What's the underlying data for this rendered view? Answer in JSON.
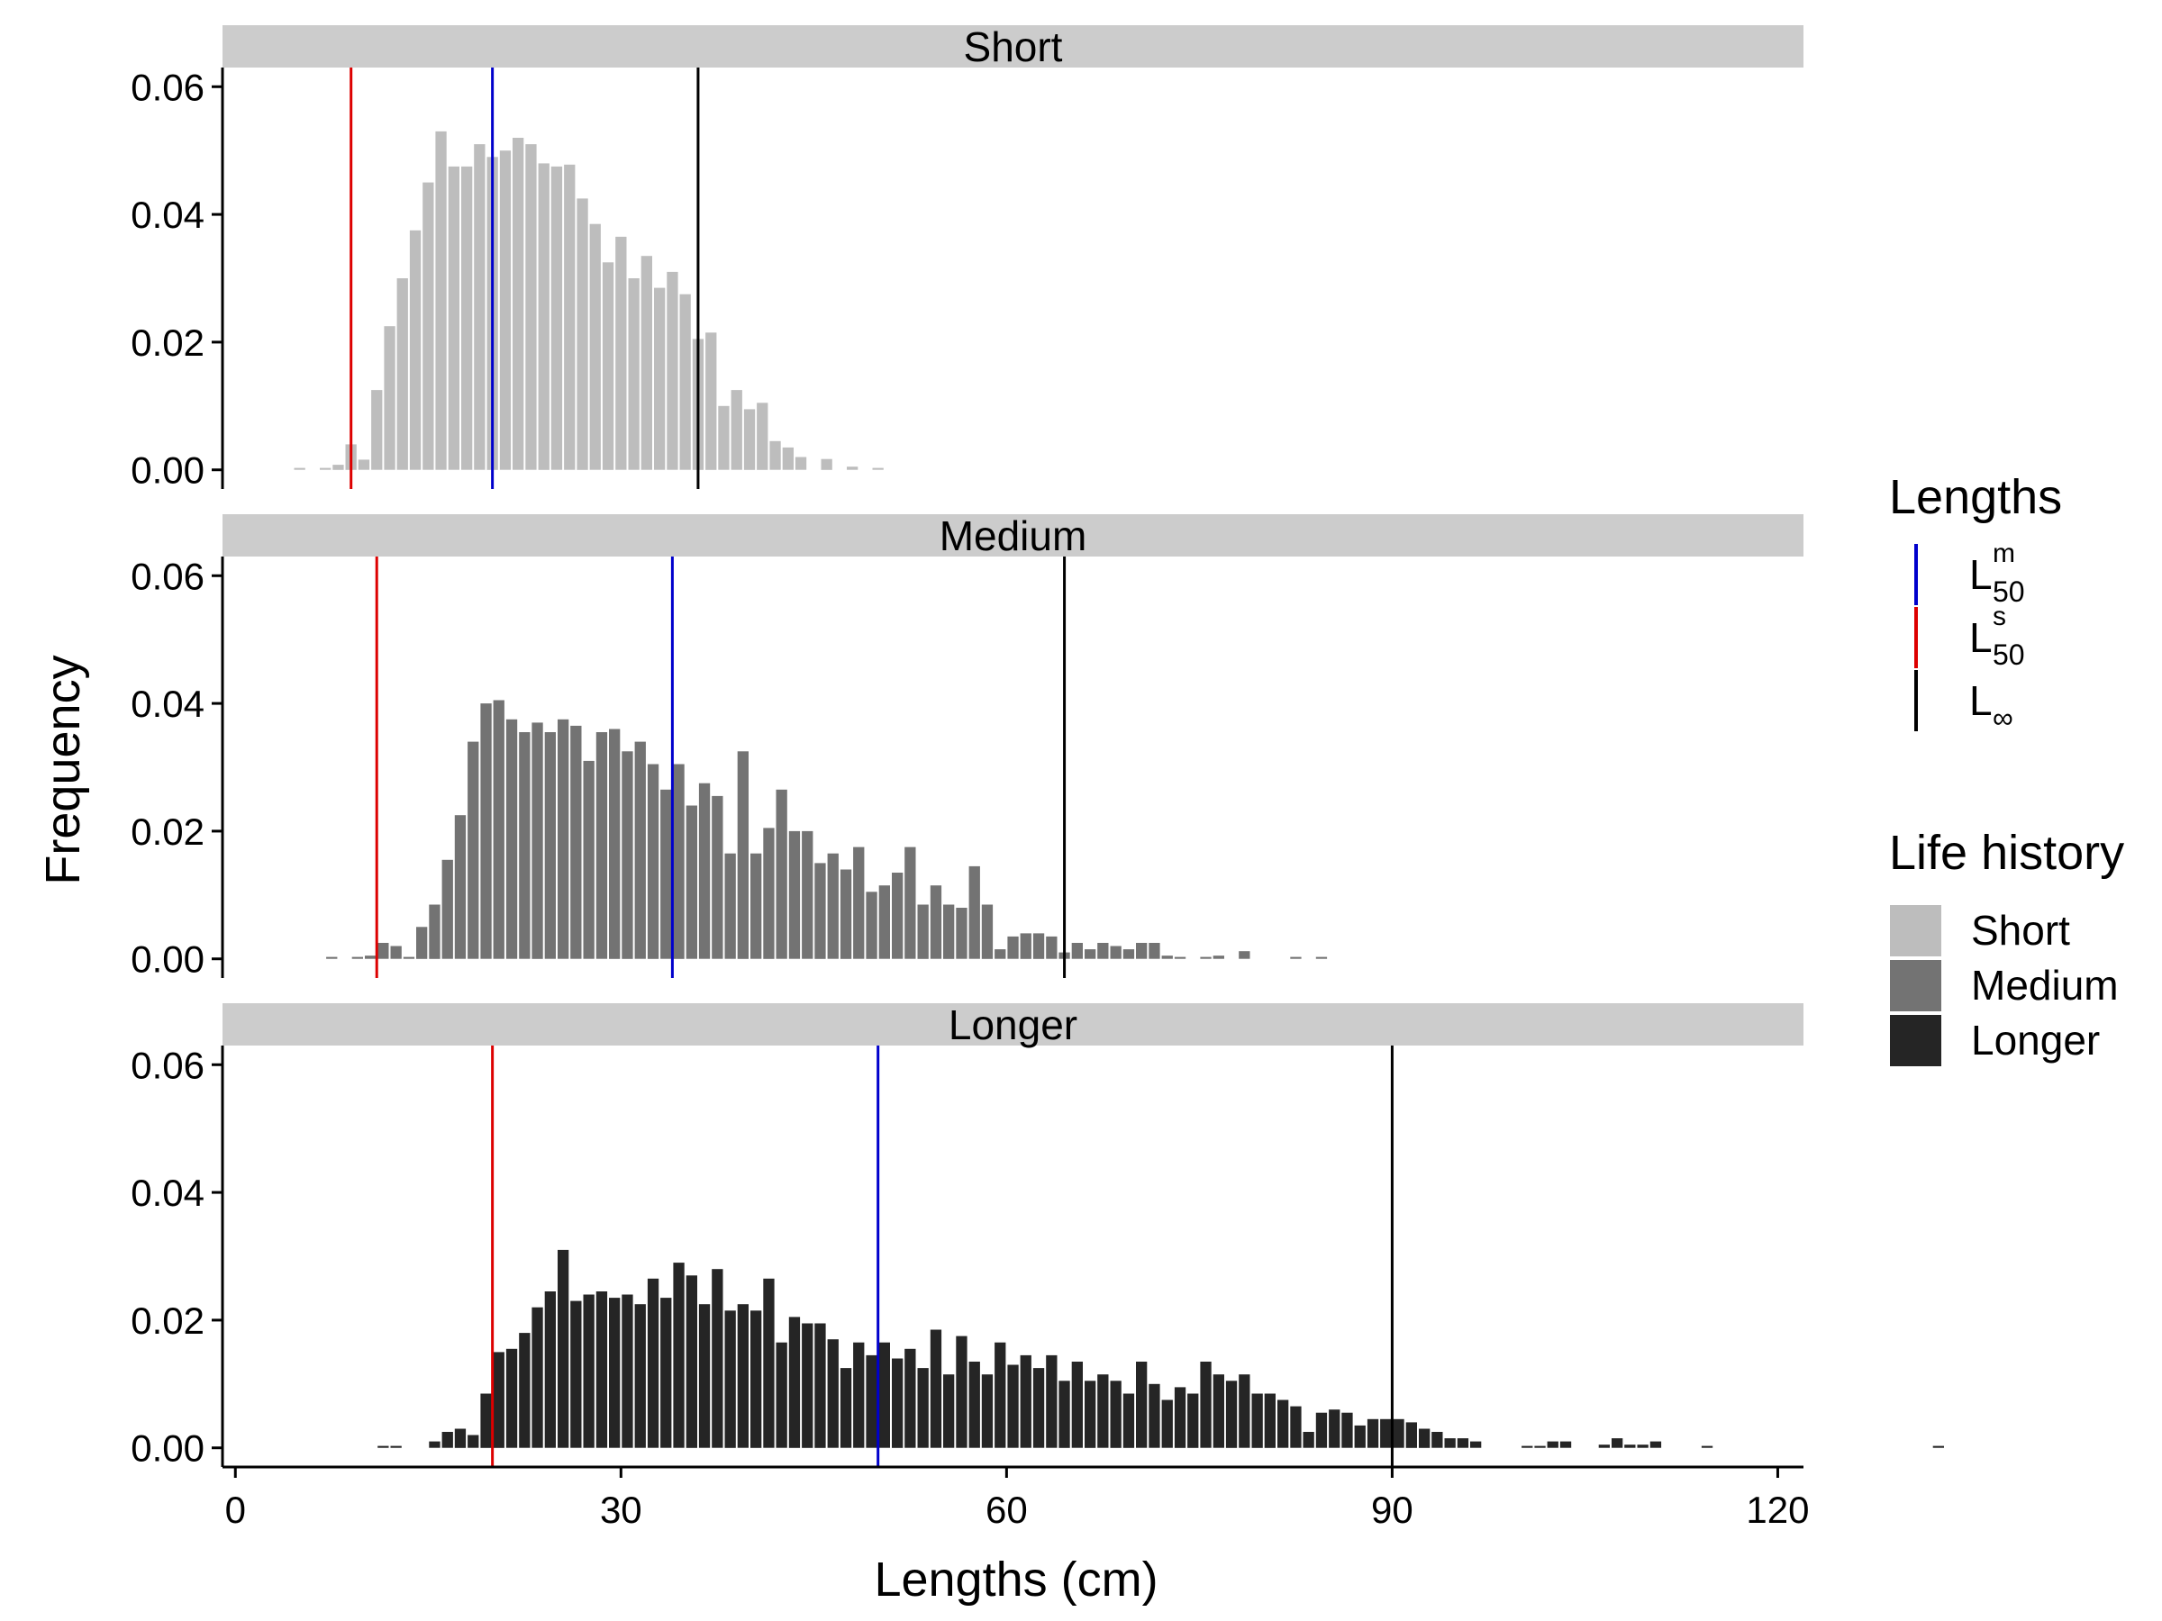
{
  "chart_data": {
    "type": "bar",
    "xlabel": "Lengths (cm)",
    "ylabel": "Frequency",
    "xlim": [
      -1,
      122
    ],
    "ylim": [
      -0.003,
      0.063
    ],
    "x_ticks": [
      0,
      30,
      60,
      90,
      120
    ],
    "x_tick_labels": [
      "0",
      "30",
      "60",
      "90",
      "120"
    ],
    "y_ticks": [
      0,
      0.02,
      0.04,
      0.06
    ],
    "y_tick_labels": [
      "0.00",
      "0.02",
      "0.04",
      "0.06"
    ],
    "bin_width": 1,
    "grid": false,
    "legend_position": "right",
    "reference_line_colors": {
      "L50m": "#0000cc",
      "L50s": "#dd0000",
      "Linf": "#000000"
    },
    "legend_lengths": {
      "title": "Lengths",
      "items": [
        {
          "key": "L50m",
          "base": "L",
          "sup": "m",
          "sub": "50",
          "color": "#0000cc"
        },
        {
          "key": "L50s",
          "base": "L",
          "sup": "s",
          "sub": "50",
          "color": "#dd0000"
        },
        {
          "key": "Linf",
          "base": "L",
          "sup": "",
          "sub": "∞",
          "color": "#000000"
        }
      ]
    },
    "legend_life_history": {
      "title": "Life history",
      "items": [
        {
          "label": "Short",
          "color": "#bdbdbd"
        },
        {
          "label": "Medium",
          "color": "#737373"
        },
        {
          "label": "Longer",
          "color": "#252525"
        }
      ]
    },
    "panels": [
      {
        "name": "Short",
        "fill": "#bdbdbd",
        "x_start": 4.5,
        "values": [
          0.0003,
          0,
          0.0003,
          0.0008,
          0.004,
          0.0016,
          0.0125,
          0.0225,
          0.03,
          0.0375,
          0.045,
          0.053,
          0.0475,
          0.0475,
          0.051,
          0.049,
          0.05,
          0.052,
          0.051,
          0.048,
          0.0475,
          0.0478,
          0.0425,
          0.0385,
          0.0325,
          0.0365,
          0.03,
          0.0335,
          0.0285,
          0.031,
          0.0275,
          0.0205,
          0.0215,
          0.01,
          0.0125,
          0.0095,
          0.0105,
          0.0045,
          0.0035,
          0.002,
          0,
          0.0017,
          0,
          0.0005,
          0,
          0.0003
        ],
        "L50s": 9,
        "L50m": 20,
        "Linf": 36
      },
      {
        "name": "Medium",
        "fill": "#737373",
        "x_start": 7,
        "values": [
          0.0003,
          0,
          0.0003,
          0.0005,
          0.0025,
          0.002,
          0.0003,
          0.005,
          0.0085,
          0.0155,
          0.0225,
          0.034,
          0.04,
          0.0405,
          0.0375,
          0.0355,
          0.037,
          0.0355,
          0.0375,
          0.0365,
          0.031,
          0.0355,
          0.036,
          0.0325,
          0.034,
          0.0305,
          0.0265,
          0.0305,
          0.024,
          0.0275,
          0.0255,
          0.0165,
          0.0325,
          0.0165,
          0.0205,
          0.0265,
          0.02,
          0.02,
          0.015,
          0.0165,
          0.014,
          0.0175,
          0.0105,
          0.0115,
          0.0135,
          0.0175,
          0.0085,
          0.0115,
          0.0085,
          0.008,
          0.0145,
          0.0085,
          0.0015,
          0.0035,
          0.004,
          0.004,
          0.0035,
          0.001,
          0.0025,
          0.0015,
          0.0025,
          0.002,
          0.0015,
          0.0025,
          0.0025,
          0.0005,
          0.0003,
          0,
          0.0003,
          0.0005,
          0,
          0.0012,
          0,
          0,
          0,
          0.0003,
          0,
          0.0003
        ],
        "L50s": 11,
        "L50m": 34,
        "Linf": 64.5
      },
      {
        "name": "Longer",
        "fill": "#252525",
        "x_start": 11,
        "values": [
          0.0003,
          0.0003,
          0,
          0,
          0.001,
          0.0025,
          0.003,
          0.002,
          0.0085,
          0.015,
          0.0155,
          0.018,
          0.022,
          0.0245,
          0.031,
          0.023,
          0.024,
          0.0245,
          0.0235,
          0.024,
          0.0225,
          0.0265,
          0.0235,
          0.029,
          0.027,
          0.0225,
          0.028,
          0.0215,
          0.0225,
          0.0215,
          0.0265,
          0.0165,
          0.0205,
          0.0195,
          0.0195,
          0.017,
          0.0125,
          0.0165,
          0.0145,
          0.0165,
          0.014,
          0.0155,
          0.0125,
          0.0185,
          0.0115,
          0.0175,
          0.0135,
          0.0115,
          0.0165,
          0.013,
          0.0145,
          0.0125,
          0.0145,
          0.0105,
          0.0135,
          0.0105,
          0.0115,
          0.0105,
          0.0085,
          0.0135,
          0.01,
          0.0075,
          0.0095,
          0.0085,
          0.0135,
          0.0115,
          0.0105,
          0.0115,
          0.0085,
          0.0085,
          0.0075,
          0.0065,
          0.0025,
          0.0055,
          0.006,
          0.0055,
          0.0035,
          0.0045,
          0.0045,
          0.0045,
          0.004,
          0.003,
          0.0025,
          0.0015,
          0.0015,
          0.001,
          0,
          0,
          0,
          0.0003,
          0.0003,
          0.001,
          0.001,
          0,
          0,
          0.0005,
          0.0015,
          0.0005,
          0.0005,
          0.001,
          0,
          0,
          0,
          0.0003,
          0,
          0,
          0,
          0,
          0,
          0,
          0,
          0,
          0,
          0,
          0,
          0,
          0,
          0,
          0,
          0,
          0,
          0.0003
        ],
        "L50s": 20,
        "L50m": 50,
        "Linf": 90
      }
    ]
  }
}
